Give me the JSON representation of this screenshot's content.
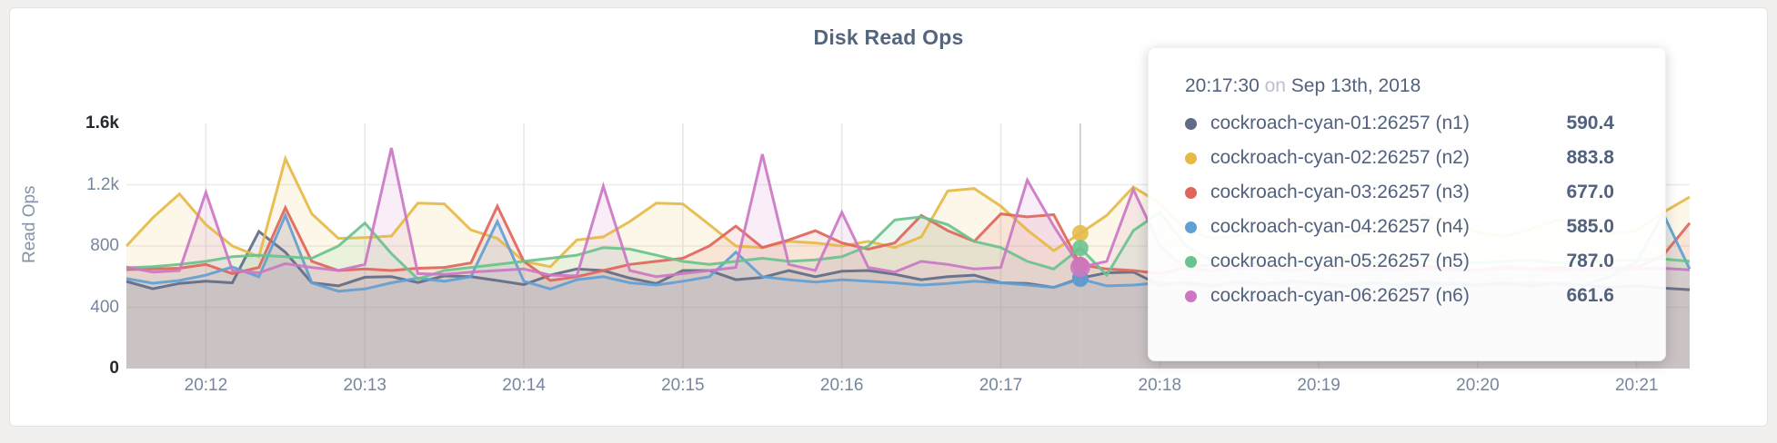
{
  "title": "Disk Read Ops",
  "tooltip": {
    "time": "20:17:30",
    "on": "on",
    "date": "Sep 13th, 2018",
    "rows": [
      {
        "name": "cockroach-cyan-01:26257 (n1)",
        "value": "590.4",
        "color": "#5f6c87"
      },
      {
        "name": "cockroach-cyan-02:26257 (n2)",
        "value": "883.8",
        "color": "#e6ba45"
      },
      {
        "name": "cockroach-cyan-03:26257 (n3)",
        "value": "677.0",
        "color": "#e0655c"
      },
      {
        "name": "cockroach-cyan-04:26257 (n4)",
        "value": "585.0",
        "color": "#61a0d4"
      },
      {
        "name": "cockroach-cyan-05:26257 (n5)",
        "value": "787.0",
        "color": "#6ac28e"
      },
      {
        "name": "cockroach-cyan-06:26257 (n6)",
        "value": "661.6",
        "color": "#cb77c4"
      }
    ]
  },
  "chart_data": {
    "type": "line",
    "title": "Disk Read Ops",
    "ylabel": "Read Ops",
    "x_start_label": "20:11:30",
    "step_seconds": 10,
    "y_domain": [
      0,
      1600
    ],
    "grid": true,
    "yticks": [
      {
        "v": 0,
        "label": "0",
        "emph": true
      },
      {
        "v": 400,
        "label": "400",
        "emph": false
      },
      {
        "v": 800,
        "label": "800",
        "emph": false
      },
      {
        "v": 1200,
        "label": "1.2k",
        "emph": false
      },
      {
        "v": 1600,
        "label": "1.6k",
        "emph": true
      }
    ],
    "xticks": [
      "20:12",
      "20:13",
      "20:14",
      "20:15",
      "20:16",
      "20:17",
      "20:18",
      "20:19",
      "20:20",
      "20:21"
    ],
    "xtick_first_index": 3,
    "xtick_every": 6,
    "hover_index": 36,
    "series": [
      {
        "name": "cockroach-cyan-01:26257 (n1)",
        "color": "#5f6c87",
        "values": [
          569,
          521,
          556,
          570,
          560,
          895,
          760,
          560,
          540,
          596,
          600,
          562,
          605,
          600,
          575,
          548,
          610,
          650,
          640,
          590,
          555,
          640,
          640,
          580,
          595,
          640,
          600,
          635,
          640,
          615,
          580,
          600,
          610,
          560,
          555,
          530,
          590.4,
          625,
          630,
          545,
          560,
          540,
          565,
          550,
          570,
          555,
          540,
          560,
          545,
          565,
          550,
          545,
          560,
          540,
          555,
          545,
          530,
          540,
          525,
          515
        ]
      },
      {
        "name": "cockroach-cyan-02:26257 (n2)",
        "color": "#e6ba45",
        "values": [
          800,
          985,
          1140,
          940,
          800,
          730,
          1370,
          1010,
          850,
          855,
          865,
          1080,
          1075,
          905,
          850,
          700,
          665,
          840,
          860,
          960,
          1080,
          1075,
          940,
          800,
          790,
          830,
          820,
          800,
          830,
          790,
          860,
          1160,
          1175,
          1060,
          905,
          770,
          883.8,
          1000,
          1185,
          1080,
          900,
          850,
          870,
          930,
          980,
          900,
          860,
          890,
          940,
          1000,
          950,
          890,
          860,
          910,
          970,
          930,
          880,
          900,
          1020,
          1120
        ]
      },
      {
        "name": "cockroach-cyan-03:26257 (n3)",
        "color": "#e0655c",
        "values": [
          646,
          650,
          655,
          680,
          620,
          660,
          1050,
          700,
          640,
          650,
          640,
          655,
          660,
          690,
          1060,
          700,
          575,
          600,
          640,
          680,
          700,
          720,
          800,
          930,
          790,
          840,
          900,
          820,
          780,
          820,
          1000,
          900,
          830,
          1010,
          990,
          1005,
          677,
          650,
          640,
          620,
          660,
          680,
          650,
          670,
          640,
          665,
          650,
          660,
          645,
          670,
          655,
          640,
          665,
          650,
          660,
          645,
          655,
          660,
          740,
          950
        ]
      },
      {
        "name": "cockroach-cyan-04:26257 (n4)",
        "color": "#61a0d4",
        "values": [
          587,
          557,
          575,
          610,
          663,
          600,
          1000,
          560,
          505,
          520,
          560,
          590,
          570,
          600,
          960,
          570,
          520,
          580,
          600,
          560,
          545,
          570,
          600,
          760,
          600,
          580,
          565,
          580,
          570,
          560,
          545,
          555,
          570,
          560,
          545,
          530,
          585,
          540,
          545,
          560,
          550,
          545,
          560,
          550,
          565,
          555,
          545,
          560,
          550,
          545,
          560,
          550,
          545,
          560,
          550,
          545,
          600,
          700,
          1010,
          650
        ]
      },
      {
        "name": "cockroach-cyan-05:26257 (n5)",
        "color": "#6ac28e",
        "values": [
          658,
          665,
          680,
          700,
          730,
          740,
          730,
          720,
          800,
          950,
          750,
          585,
          640,
          660,
          680,
          700,
          720,
          740,
          790,
          780,
          740,
          700,
          680,
          700,
          720,
          700,
          710,
          730,
          800,
          970,
          990,
          940,
          830,
          790,
          700,
          650,
          787,
          610,
          900,
          1020,
          800,
          700,
          680,
          700,
          690,
          700,
          710,
          690,
          700,
          710,
          700,
          690,
          700,
          710,
          690,
          700,
          705,
          710,
          715,
          700
        ]
      },
      {
        "name": "cockroach-cyan-06:26257 (n6)",
        "color": "#cb77c4",
        "values": [
          663,
          630,
          640,
          1150,
          640,
          625,
          685,
          660,
          640,
          680,
          1440,
          620,
          615,
          630,
          640,
          650,
          610,
          605,
          1190,
          640,
          600,
          620,
          640,
          660,
          1400,
          680,
          640,
          1020,
          660,
          630,
          700,
          680,
          650,
          660,
          1230,
          930,
          661.6,
          700,
          1170,
          800,
          650,
          640,
          660,
          650,
          640,
          655,
          645,
          650,
          640,
          655,
          645,
          640,
          655,
          650,
          640,
          650,
          645,
          655,
          655,
          645
        ]
      }
    ]
  }
}
